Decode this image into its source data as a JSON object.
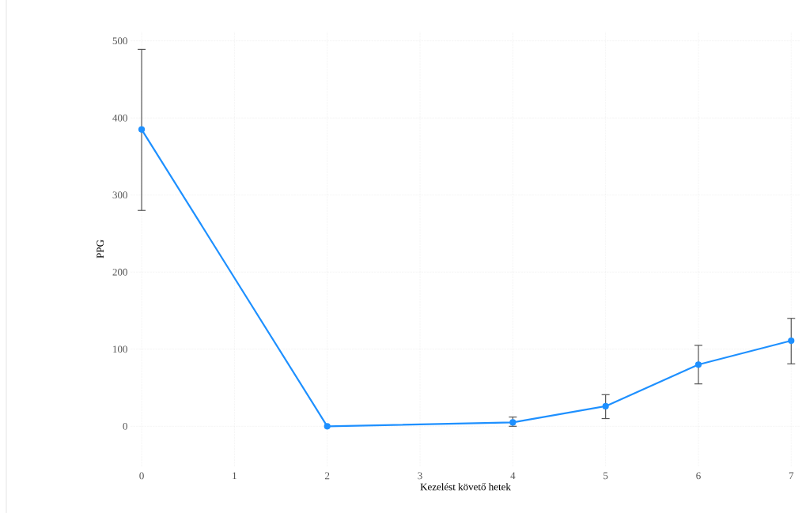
{
  "chart_data": {
    "type": "line",
    "xlabel": "Kezelést követő hetek",
    "ylabel": "PPG",
    "x": [
      0,
      2,
      4,
      5,
      6,
      7
    ],
    "series": [
      {
        "color": "#1e90ff",
        "values": [
          385,
          0,
          5,
          26,
          80,
          111
        ],
        "errors": [
          [
            280,
            489
          ],
          null,
          [
            0,
            12
          ],
          [
            10,
            41
          ],
          [
            55,
            105
          ],
          [
            81,
            140
          ]
        ]
      }
    ],
    "xlim": [
      -0.12,
      7.1
    ],
    "ylim": [
      -52,
      512
    ],
    "xticks": [
      0,
      1,
      2,
      3,
      4,
      5,
      6,
      7
    ],
    "yticks": [
      0,
      100,
      200,
      300,
      400,
      500
    ],
    "grid": true,
    "marker": "circle",
    "line_style": "solid"
  }
}
